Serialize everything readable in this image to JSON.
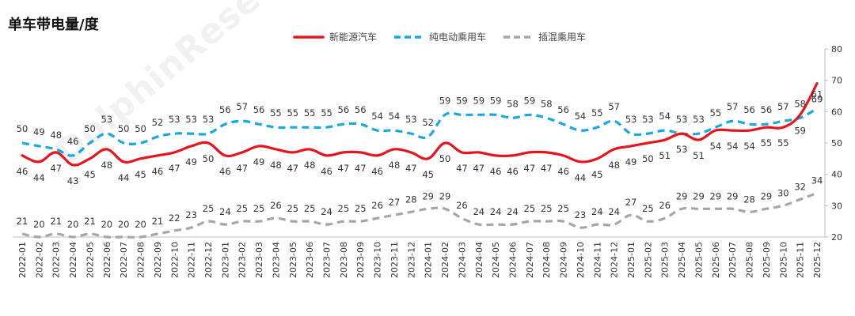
{
  "title": "单车带电量/度",
  "watermark": "DolphinResearch",
  "colors": {
    "nev": "#e8141c",
    "bev": "#17a9e1",
    "phev": "#a6a6a6"
  },
  "chart_data": {
    "type": "line",
    "title": "单车带电量/度",
    "categories": [
      "2022-01",
      "2022-02",
      "2022-03",
      "2022-04",
      "2022-05",
      "2022-06",
      "2022-07",
      "2022-08",
      "2022-09",
      "2022-10",
      "2022-11",
      "2022-12",
      "2023-01",
      "2023-02",
      "2023-03",
      "2023-04",
      "2023-05",
      "2023-06",
      "2023-07",
      "2023-08",
      "2023-09",
      "2023-10",
      "2023-11",
      "2023-12",
      "2024-01",
      "2024-02",
      "2024-03",
      "2024-04",
      "2024-05",
      "2024-06",
      "2024-07",
      "2024-08",
      "2024-09",
      "2024-10",
      "2024-11",
      "2024-12",
      "2025-01",
      "2025-02",
      "2025-03",
      "2025-04",
      "2025-05",
      "2025-06",
      "2025-07",
      "2025-08",
      "2025-09",
      "2025-10",
      "2025-11",
      "2025-12"
    ],
    "ylim": [
      20,
      80
    ],
    "yticks": [
      20,
      30,
      40,
      50,
      60,
      70,
      80
    ],
    "legend_position": "top-center",
    "grid": false,
    "series": [
      {
        "name": "新能源汽车",
        "style": "solid",
        "color": "#e8141c",
        "values": [
          46,
          44,
          47,
          43,
          45,
          48,
          44,
          45,
          46,
          47,
          49,
          50,
          46,
          47,
          49,
          48,
          47,
          48,
          46,
          47,
          47,
          46,
          48,
          47,
          45,
          50,
          47,
          47,
          46,
          46,
          47,
          47,
          46,
          44,
          45,
          48,
          49,
          50,
          51,
          53,
          51,
          54,
          54,
          54,
          55,
          55,
          59,
          69
        ]
      },
      {
        "name": "纯电动乘用车",
        "style": "dashed",
        "color": "#17a9e1",
        "values": [
          50,
          49,
          48,
          46,
          50,
          53,
          50,
          50,
          52,
          53,
          53,
          53,
          56,
          57,
          56,
          55,
          55,
          55,
          55,
          56,
          56,
          54,
          54,
          53,
          52,
          59,
          59,
          59,
          59,
          58,
          59,
          58,
          56,
          54,
          55,
          57,
          53,
          53,
          54,
          53,
          53,
          55,
          57,
          56,
          56,
          57,
          58,
          61
        ]
      },
      {
        "name": "插混乘用车",
        "style": "dashed",
        "color": "#a6a6a6",
        "values": [
          21,
          20,
          21,
          20,
          21,
          20,
          20,
          20,
          21,
          22,
          23,
          25,
          24,
          25,
          25,
          26,
          25,
          25,
          24,
          25,
          25,
          26,
          27,
          28,
          29,
          29,
          26,
          24,
          24,
          24,
          25,
          25,
          25,
          23,
          24,
          24,
          27,
          25,
          26,
          29,
          29,
          29,
          29,
          28,
          29,
          30,
          32,
          34
        ]
      }
    ]
  }
}
